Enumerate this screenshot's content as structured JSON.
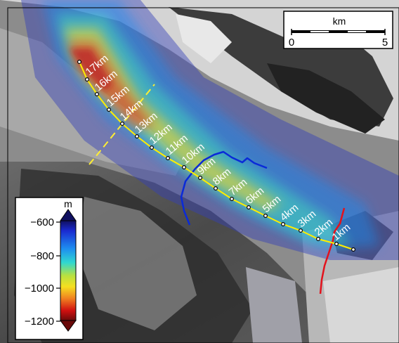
{
  "scale_bar": {
    "unit": "km",
    "start_label": "0",
    "end_label": "5"
  },
  "colorbar": {
    "unit": "m",
    "ticks": [
      "−600",
      "−800",
      "−1000",
      "−1200"
    ],
    "min_value": -1250,
    "max_value": -550
  },
  "profile": {
    "labels": [
      "1km",
      "2km",
      "3km",
      "4km",
      "5km",
      "6km",
      "7km",
      "8km",
      "9km",
      "10km",
      "11km",
      "12km",
      "13km",
      "14km",
      "15km",
      "16km",
      "17km"
    ]
  },
  "colors": {
    "profile_line": "#ffee00",
    "cross_line": "#ffee33",
    "blue_front": "#0a2ad8",
    "red_front": "#e3121c",
    "label_text": "#ffffff"
  }
}
